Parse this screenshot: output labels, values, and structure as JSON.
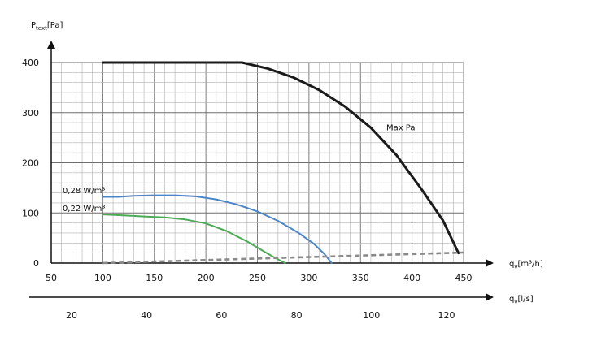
{
  "chart_data": {
    "type": "line",
    "y_axis": {
      "label_main": "P",
      "label_sub": "text",
      "label_unit": "[Pa]",
      "range": [
        0,
        400
      ],
      "ticks": [
        0,
        100,
        200,
        300,
        400
      ]
    },
    "x_axis": {
      "label_main": "q",
      "label_sub": "v",
      "label_unit": "[m³/h]",
      "range": [
        50,
        450
      ],
      "ticks": [
        50,
        100,
        150,
        200,
        250,
        300,
        350,
        400,
        450
      ]
    },
    "x_axis_secondary": {
      "label_main": "q",
      "label_sub": "v",
      "label_unit": "[l/s]",
      "ticks": [
        20,
        40,
        60,
        80,
        100,
        120
      ]
    },
    "grid": true,
    "series": [
      {
        "name": "Max Pa",
        "color": "#1a1a1a",
        "style": "solid",
        "x": [
          100,
          120,
          140,
          160,
          180,
          200,
          220,
          235,
          260,
          285,
          310,
          335,
          360,
          385,
          410,
          430,
          445
        ],
        "y": [
          400,
          400,
          400,
          400,
          400,
          400,
          400,
          400,
          388,
          370,
          345,
          312,
          270,
          215,
          145,
          85,
          20
        ]
      },
      {
        "name": "0,28 W/m³",
        "color": "#4a86c8",
        "style": "solid",
        "x": [
          100,
          115,
          130,
          150,
          170,
          190,
          210,
          230,
          250,
          270,
          290,
          305,
          315,
          322
        ],
        "y": [
          132,
          132,
          134,
          135,
          135,
          133,
          127,
          117,
          103,
          84,
          60,
          38,
          18,
          0
        ]
      },
      {
        "name": "0,22 W/m³",
        "color": "#4caa55",
        "style": "solid",
        "x": [
          100,
          120,
          140,
          160,
          180,
          200,
          220,
          240,
          255,
          265,
          272,
          277
        ],
        "y": [
          97,
          95,
          93,
          91,
          87,
          79,
          64,
          43,
          25,
          13,
          5,
          0
        ]
      },
      {
        "name": "",
        "color": "#8a8a8a",
        "style": "dashed",
        "x": [
          100,
          450
        ],
        "y": [
          0,
          21
        ]
      }
    ],
    "annotations": [
      {
        "text": "Max Pa",
        "x": 375,
        "y": 265
      },
      {
        "text": "0,28 W/m³",
        "x": 61,
        "y": 139
      },
      {
        "text": "0,22 W/m³",
        "x": 61,
        "y": 104
      }
    ]
  }
}
